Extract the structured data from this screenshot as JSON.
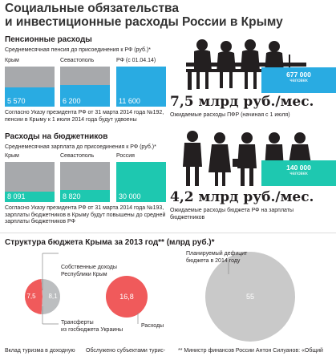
{
  "title_line1": "Социальные обязательства",
  "title_line2": "и инвестиционные расходы России в Крыму",
  "pension": {
    "heading": "Пенсионные расходы",
    "subheading": "Среднемесячная пенсия до присоединения к РФ (руб.)*",
    "note_line1": "Согласно Указу президента РФ от 31 марта 2014 года №192,",
    "note_line2": "пенсии в Крыму к 1 июля 2014 года будут  удвоены",
    "people_count": "677 000",
    "people_unit": "человек",
    "big_amount": "7,5 млрд руб./мес.",
    "expected": "Ожидаемые расходы ПФР (начиная с 1 июля)"
  },
  "budget_workers": {
    "heading": "Расходы на бюджетников",
    "subheading": "Среднемесячная зарплата до присоединения к РФ (руб.)*",
    "note_line1": "Согласно Указу президента РФ от 31 марта 2014 года №193,",
    "note_line2": "зарплаты бюджетников в Крыму будут повышены до средней",
    "note_line3": "зарплаты бюджетников РФ",
    "people_count": "140 000",
    "people_unit": "человек",
    "big_amount": "4,2 млрд руб./мес.",
    "expected_line1": "Ожидаемые расходы бюджета РФ на зарплаты",
    "expected_line2": "бюджетников"
  },
  "structure": {
    "heading": "Структура бюджета Крыма за 2013 год** (млрд руб.)*",
    "label_own_1": "Собственные доходы",
    "label_own_2": "Республики Крым",
    "label_transfers_1": "Трансферты",
    "label_transfers_2": "из госбюджета Украины",
    "label_expenses": "Расходы",
    "label_deficit_1": "Планируемый дефицит",
    "label_deficit_2": "бюджета в 2014 году"
  },
  "footer": {
    "col1": "Вклад туризма в доходную",
    "col2": "Обслужено субъектами турис-",
    "col3": "** Министр финансов России Антон Силуанов: «Общий"
  },
  "chart_data": [
    {
      "type": "bar",
      "title": "Среднемесячная пенсия до присоединения к РФ (руб.)*",
      "categories": [
        "Крым",
        "Севастополь",
        "РФ (с 01.04.14)"
      ],
      "values": [
        5570,
        6200,
        11600
      ],
      "value_labels": [
        "5 570",
        "6 200",
        "11 600"
      ],
      "ylim": [
        0,
        11600
      ],
      "colors": {
        "crimea": "#29abe2",
        "rest": "#a7a9ac"
      }
    },
    {
      "type": "bar",
      "title": "Среднемесячная зарплата до присоединения к РФ (руб.)*",
      "categories": [
        "Крым",
        "Севастополь",
        "Россия"
      ],
      "values": [
        8091,
        8820,
        30000
      ],
      "value_labels": [
        "8 091",
        "8 820",
        "30 000"
      ],
      "ylim": [
        0,
        30000
      ],
      "colors": {
        "crimea": "#1ec8b0",
        "rest": "#a7a9ac"
      }
    },
    {
      "type": "pie",
      "title": "Структура бюджета Крыма за 2013 год** (млрд руб.)*",
      "slices": [
        {
          "name": "Трансферты из госбюджета Украины",
          "value": 7.5,
          "label": "7,5",
          "color": "#f05a5b"
        },
        {
          "name": "Собственные доходы Республики Крым",
          "value": 8.1,
          "label": "8,1",
          "color": "#bcbec0"
        }
      ]
    },
    {
      "type": "bubble",
      "items": [
        {
          "name": "Расходы",
          "value": 16.8,
          "label": "16,8",
          "color": "#f05a5b"
        },
        {
          "name": "Планируемый дефицит бюджета в 2014 году",
          "value": 55,
          "label": "55",
          "color": "#c9c9c9"
        }
      ]
    }
  ]
}
